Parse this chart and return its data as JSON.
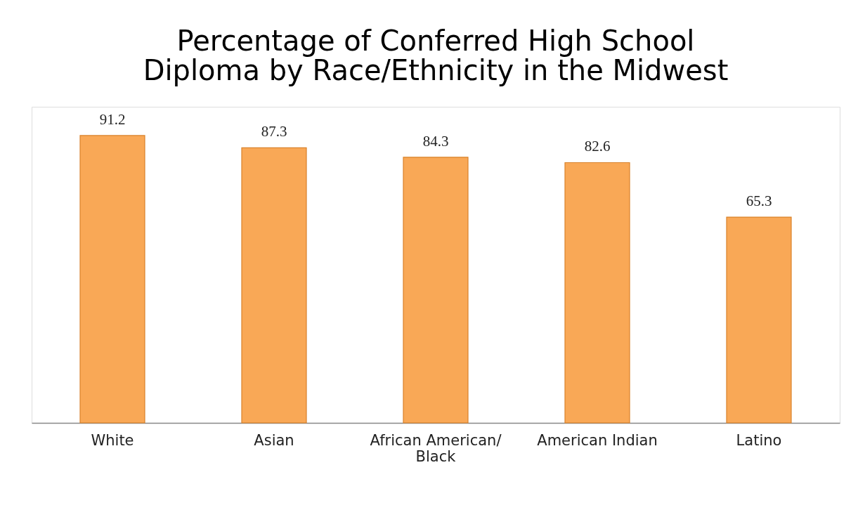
{
  "chart_data": {
    "type": "bar",
    "title": [
      "Percentage of Conferred High School",
      "Diploma by Race/Ethnicity in the Midwest"
    ],
    "categories": [
      "White",
      "Asian",
      "African American/ Black",
      "American Indian",
      "Latino"
    ],
    "values": [
      91.2,
      87.3,
      84.3,
      82.6,
      65.3
    ],
    "color": "#f9a856",
    "tick_labels": "x",
    "data_labels": true
  }
}
